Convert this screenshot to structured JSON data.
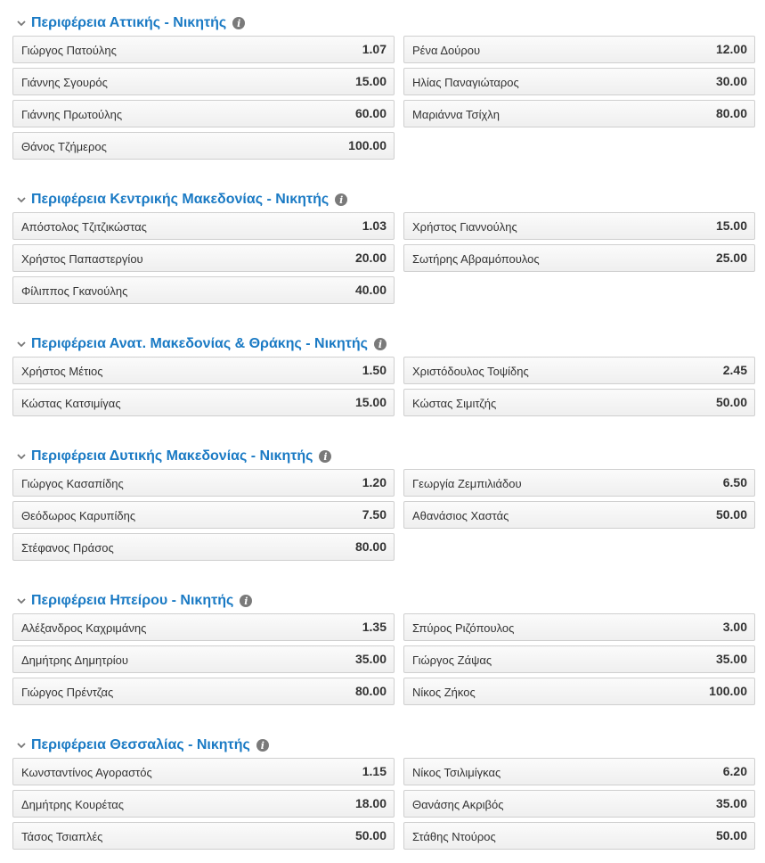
{
  "sections": [
    {
      "title": "Περιφέρεια Αττικής - Νικητής",
      "rows": [
        [
          {
            "name": "Γιώργος Πατούλης",
            "odds": "1.07"
          },
          {
            "name": "Ρένα Δούρου",
            "odds": "12.00"
          }
        ],
        [
          {
            "name": "Γιάννης Σγουρός",
            "odds": "15.00"
          },
          {
            "name": "Ηλίας Παναγιώταρος",
            "odds": "30.00"
          }
        ],
        [
          {
            "name": "Γιάννης Πρωτούλης",
            "odds": "60.00"
          },
          {
            "name": "Μαριάννα Τσίχλη",
            "odds": "80.00"
          }
        ],
        [
          {
            "name": "Θάνος Τζήμερος",
            "odds": "100.00"
          }
        ]
      ]
    },
    {
      "title": "Περιφέρεια Κεντρικής Μακεδονίας - Νικητής",
      "rows": [
        [
          {
            "name": "Απόστολος Τζιτζικώστας",
            "odds": "1.03"
          },
          {
            "name": "Χρήστος Γιαννούλης",
            "odds": "15.00"
          }
        ],
        [
          {
            "name": "Χρήστος Παπαστεργίου",
            "odds": "20.00"
          },
          {
            "name": "Σωτήρης Αβραμόπουλος",
            "odds": "25.00"
          }
        ],
        [
          {
            "name": "Φίλιππος Γκανούλης",
            "odds": "40.00"
          }
        ]
      ]
    },
    {
      "title": "Περιφέρεια Ανατ. Μακεδονίας & Θράκης - Νικητής",
      "rows": [
        [
          {
            "name": "Χρήστος Μέτιος",
            "odds": "1.50"
          },
          {
            "name": "Χριστόδουλος Τοψίδης",
            "odds": "2.45"
          }
        ],
        [
          {
            "name": "Κώστας Κατσιμίγας",
            "odds": "15.00"
          },
          {
            "name": "Κώστας Σιμιτζής",
            "odds": "50.00"
          }
        ]
      ]
    },
    {
      "title": "Περιφέρεια Δυτικής Μακεδονίας - Νικητής",
      "rows": [
        [
          {
            "name": "Γιώργος Κασαπίδης",
            "odds": "1.20"
          },
          {
            "name": "Γεωργία Ζεμπιλιάδου",
            "odds": "6.50"
          }
        ],
        [
          {
            "name": "Θεόδωρος Καρυπίδης",
            "odds": "7.50"
          },
          {
            "name": "Αθανάσιος Χαστάς",
            "odds": "50.00"
          }
        ],
        [
          {
            "name": "Στέφανος Πράσος",
            "odds": "80.00"
          }
        ]
      ]
    },
    {
      "title": "Περιφέρεια Ηπείρου - Νικητής",
      "rows": [
        [
          {
            "name": "Αλέξανδρος Καχριμάνης",
            "odds": "1.35"
          },
          {
            "name": "Σπύρος Ριζόπουλος",
            "odds": "3.00"
          }
        ],
        [
          {
            "name": "Δημήτρης Δημητρίου",
            "odds": "35.00"
          },
          {
            "name": "Γιώργος Ζάψας",
            "odds": "35.00"
          }
        ],
        [
          {
            "name": "Γιώργος Πρέντζας",
            "odds": "80.00"
          },
          {
            "name": "Νίκος Ζήκος",
            "odds": "100.00"
          }
        ]
      ]
    },
    {
      "title": "Περιφέρεια Θεσσαλίας - Νικητής",
      "rows": [
        [
          {
            "name": "Κωνσταντίνος Αγοραστός",
            "odds": "1.15"
          },
          {
            "name": "Νίκος Τσιλιμίγκας",
            "odds": "6.20"
          }
        ],
        [
          {
            "name": "Δημήτρης Κουρέτας",
            "odds": "18.00"
          },
          {
            "name": "Θανάσης Ακριβός",
            "odds": "35.00"
          }
        ],
        [
          {
            "name": "Τάσος Τσιαπλές",
            "odds": "50.00"
          },
          {
            "name": "Στάθης Ντούρος",
            "odds": "50.00"
          }
        ]
      ]
    }
  ],
  "icons": {
    "collapse": "chevron-down-icon",
    "info": "info-icon",
    "info_glyph": "i"
  }
}
